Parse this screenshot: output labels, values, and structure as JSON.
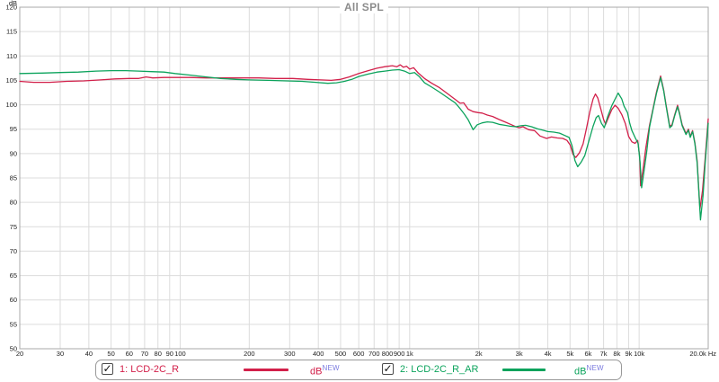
{
  "title": "All SPL",
  "legend": {
    "badge_color": "#7b7bdf",
    "items": [
      {
        "checked": true,
        "check_glyph": "✓",
        "label": "1: LCD-2C_R",
        "unit": "dB",
        "badge": "NEW",
        "color": "#d2204a"
      },
      {
        "checked": true,
        "check_glyph": "✓",
        "label": "2: LCD-2C_R_AR",
        "unit": "dB",
        "badge": "NEW",
        "color": "#0ca35c"
      }
    ]
  },
  "colors": {
    "grid": "#dcdcdc",
    "border": "#a8a8a8",
    "title": "#8c8c8c",
    "tick_text": "#222222",
    "plot_bg": "#ffffff"
  },
  "chart_data": {
    "type": "line",
    "title": "All SPL",
    "xlabel": "Hz",
    "ylabel": "dB",
    "xscale": "log",
    "xlim": [
      20,
      20000
    ],
    "ylim": [
      50,
      120
    ],
    "grid": true,
    "legend_position": "bottom",
    "y_ticks": [
      120,
      115,
      110,
      105,
      100,
      95,
      90,
      85,
      80,
      75,
      70,
      65,
      60,
      55,
      50
    ],
    "x_ticks": [
      {
        "f": 20,
        "label": "20"
      },
      {
        "f": 30,
        "label": "30"
      },
      {
        "f": 40,
        "label": "40"
      },
      {
        "f": 50,
        "label": "50"
      },
      {
        "f": 60,
        "label": "60"
      },
      {
        "f": 70,
        "label": "70"
      },
      {
        "f": 80,
        "label": "80"
      },
      {
        "f": 90,
        "label": "90"
      },
      {
        "f": 100,
        "label": "100"
      },
      {
        "f": 200,
        "label": "200"
      },
      {
        "f": 300,
        "label": "300"
      },
      {
        "f": 400,
        "label": "400"
      },
      {
        "f": 500,
        "label": "500"
      },
      {
        "f": 600,
        "label": "600"
      },
      {
        "f": 700,
        "label": "700"
      },
      {
        "f": 800,
        "label": "800"
      },
      {
        "f": 900,
        "label": "900"
      },
      {
        "f": 1000,
        "label": "1k"
      },
      {
        "f": 2000,
        "label": "2k"
      },
      {
        "f": 3000,
        "label": "3k"
      },
      {
        "f": 4000,
        "label": "4k"
      },
      {
        "f": 5000,
        "label": "5k"
      },
      {
        "f": 6000,
        "label": "6k"
      },
      {
        "f": 7000,
        "label": "7k"
      },
      {
        "f": 8000,
        "label": "8k"
      },
      {
        "f": 9000,
        "label": "9k"
      },
      {
        "f": 10000,
        "label": "10k"
      },
      {
        "f": 20000,
        "label": "20.0k Hz"
      }
    ],
    "series": [
      {
        "name": "1: LCD-2C_R",
        "color": "#d2204a",
        "unit": "dB",
        "points": [
          [
            20,
            104.8
          ],
          [
            23,
            104.6
          ],
          [
            27,
            104.6
          ],
          [
            32,
            104.8
          ],
          [
            38,
            104.9
          ],
          [
            45,
            105.1
          ],
          [
            52,
            105.3
          ],
          [
            60,
            105.4
          ],
          [
            66,
            105.4
          ],
          [
            71,
            105.7
          ],
          [
            76,
            105.5
          ],
          [
            85,
            105.6
          ],
          [
            95,
            105.6
          ],
          [
            110,
            105.6
          ],
          [
            130,
            105.5
          ],
          [
            155,
            105.5
          ],
          [
            185,
            105.5
          ],
          [
            220,
            105.5
          ],
          [
            260,
            105.4
          ],
          [
            310,
            105.4
          ],
          [
            360,
            105.2
          ],
          [
            410,
            105.1
          ],
          [
            455,
            105.0
          ],
          [
            500,
            105.2
          ],
          [
            545,
            105.7
          ],
          [
            600,
            106.4
          ],
          [
            660,
            107.0
          ],
          [
            720,
            107.5
          ],
          [
            780,
            107.8
          ],
          [
            840,
            108.0
          ],
          [
            880,
            107.8
          ],
          [
            910,
            108.2
          ],
          [
            940,
            107.7
          ],
          [
            970,
            107.9
          ],
          [
            1000,
            107.3
          ],
          [
            1040,
            107.6
          ],
          [
            1090,
            106.5
          ],
          [
            1160,
            105.4
          ],
          [
            1250,
            104.4
          ],
          [
            1350,
            103.5
          ],
          [
            1470,
            102.2
          ],
          [
            1580,
            101.1
          ],
          [
            1660,
            100.3
          ],
          [
            1720,
            100.4
          ],
          [
            1800,
            99.1
          ],
          [
            1890,
            98.6
          ],
          [
            1990,
            98.4
          ],
          [
            2070,
            98.3
          ],
          [
            2180,
            97.9
          ],
          [
            2300,
            97.6
          ],
          [
            2450,
            97.0
          ],
          [
            2600,
            96.5
          ],
          [
            2750,
            96.0
          ],
          [
            2900,
            95.5
          ],
          [
            3000,
            95.3
          ],
          [
            3120,
            95.5
          ],
          [
            3300,
            94.9
          ],
          [
            3500,
            94.7
          ],
          [
            3700,
            93.6
          ],
          [
            3950,
            93.1
          ],
          [
            4150,
            93.4
          ],
          [
            4400,
            93.2
          ],
          [
            4650,
            93.1
          ],
          [
            4850,
            92.7
          ],
          [
            5000,
            91.8
          ],
          [
            5150,
            89.8
          ],
          [
            5300,
            89.2
          ],
          [
            5500,
            90.2
          ],
          [
            5700,
            92.0
          ],
          [
            5900,
            95.2
          ],
          [
            6100,
            98.6
          ],
          [
            6300,
            101.2
          ],
          [
            6450,
            102.2
          ],
          [
            6600,
            101.4
          ],
          [
            6800,
            99.2
          ],
          [
            7000,
            97.0
          ],
          [
            7150,
            96.0
          ],
          [
            7350,
            97.4
          ],
          [
            7600,
            99.0
          ],
          [
            7850,
            99.9
          ],
          [
            8100,
            99.3
          ],
          [
            8400,
            98.0
          ],
          [
            8700,
            96.2
          ],
          [
            9000,
            93.5
          ],
          [
            9300,
            92.4
          ],
          [
            9600,
            92.1
          ],
          [
            9850,
            92.7
          ],
          [
            10050,
            89.5
          ],
          [
            10150,
            83.4
          ],
          [
            10400,
            86.8
          ],
          [
            10700,
            91.2
          ],
          [
            11100,
            95.8
          ],
          [
            11500,
            99.2
          ],
          [
            11900,
            102.6
          ],
          [
            12400,
            105.9
          ],
          [
            12800,
            103.0
          ],
          [
            13100,
            100.0
          ],
          [
            13600,
            95.6
          ],
          [
            13900,
            95.9
          ],
          [
            14300,
            98.0
          ],
          [
            14700,
            99.9
          ],
          [
            15000,
            98.3
          ],
          [
            15400,
            95.9
          ],
          [
            16000,
            94.1
          ],
          [
            16400,
            95.0
          ],
          [
            16700,
            93.5
          ],
          [
            17100,
            94.7
          ],
          [
            17500,
            92.2
          ],
          [
            17900,
            88.5
          ],
          [
            18400,
            78.6
          ],
          [
            18900,
            82.5
          ],
          [
            19400,
            89.0
          ],
          [
            20000,
            97.1
          ]
        ]
      },
      {
        "name": "2: LCD-2C_R_AR",
        "color": "#0ca35c",
        "unit": "dB",
        "points": [
          [
            20,
            106.4
          ],
          [
            25,
            106.5
          ],
          [
            30,
            106.6
          ],
          [
            36,
            106.7
          ],
          [
            43,
            106.9
          ],
          [
            50,
            107.0
          ],
          [
            58,
            107.0
          ],
          [
            66,
            106.9
          ],
          [
            75,
            106.8
          ],
          [
            85,
            106.7
          ],
          [
            95,
            106.4
          ],
          [
            110,
            106.1
          ],
          [
            130,
            105.7
          ],
          [
            150,
            105.4
          ],
          [
            175,
            105.2
          ],
          [
            200,
            105.1
          ],
          [
            240,
            105.0
          ],
          [
            290,
            104.9
          ],
          [
            340,
            104.8
          ],
          [
            390,
            104.6
          ],
          [
            440,
            104.4
          ],
          [
            480,
            104.5
          ],
          [
            520,
            104.8
          ],
          [
            560,
            105.2
          ],
          [
            600,
            105.8
          ],
          [
            660,
            106.3
          ],
          [
            720,
            106.7
          ],
          [
            780,
            106.9
          ],
          [
            840,
            107.1
          ],
          [
            900,
            107.2
          ],
          [
            950,
            106.9
          ],
          [
            1000,
            106.4
          ],
          [
            1050,
            106.6
          ],
          [
            1100,
            105.8
          ],
          [
            1160,
            104.5
          ],
          [
            1250,
            103.6
          ],
          [
            1350,
            102.6
          ],
          [
            1470,
            101.4
          ],
          [
            1580,
            100.4
          ],
          [
            1660,
            99.2
          ],
          [
            1730,
            98.1
          ],
          [
            1800,
            96.9
          ],
          [
            1890,
            94.9
          ],
          [
            1970,
            95.9
          ],
          [
            2070,
            96.3
          ],
          [
            2180,
            96.5
          ],
          [
            2300,
            96.4
          ],
          [
            2450,
            96.0
          ],
          [
            2600,
            95.8
          ],
          [
            2750,
            95.6
          ],
          [
            2900,
            95.5
          ],
          [
            3050,
            95.7
          ],
          [
            3200,
            95.8
          ],
          [
            3400,
            95.5
          ],
          [
            3600,
            95.1
          ],
          [
            3800,
            94.8
          ],
          [
            4000,
            94.5
          ],
          [
            4250,
            94.4
          ],
          [
            4500,
            94.2
          ],
          [
            4750,
            93.7
          ],
          [
            4950,
            93.3
          ],
          [
            5100,
            91.6
          ],
          [
            5250,
            88.6
          ],
          [
            5400,
            87.3
          ],
          [
            5600,
            88.3
          ],
          [
            5800,
            89.6
          ],
          [
            6050,
            92.7
          ],
          [
            6300,
            95.6
          ],
          [
            6500,
            97.4
          ],
          [
            6650,
            97.8
          ],
          [
            6850,
            96.2
          ],
          [
            7050,
            95.3
          ],
          [
            7300,
            97.6
          ],
          [
            7600,
            99.8
          ],
          [
            7900,
            101.4
          ],
          [
            8100,
            102.4
          ],
          [
            8400,
            101.2
          ],
          [
            8600,
            99.7
          ],
          [
            8900,
            98.4
          ],
          [
            9100,
            96.2
          ],
          [
            9300,
            94.7
          ],
          [
            9600,
            93.3
          ],
          [
            9900,
            92.1
          ],
          [
            10100,
            88.2
          ],
          [
            10250,
            83.0
          ],
          [
            10500,
            86.3
          ],
          [
            10800,
            90.6
          ],
          [
            11100,
            95.4
          ],
          [
            11500,
            99.0
          ],
          [
            11900,
            102.3
          ],
          [
            12400,
            105.6
          ],
          [
            12800,
            102.8
          ],
          [
            13100,
            99.8
          ],
          [
            13600,
            95.3
          ],
          [
            13900,
            95.7
          ],
          [
            14300,
            97.8
          ],
          [
            14700,
            99.6
          ],
          [
            15000,
            98.1
          ],
          [
            15400,
            95.7
          ],
          [
            16000,
            93.9
          ],
          [
            16400,
            94.8
          ],
          [
            16700,
            93.3
          ],
          [
            17100,
            94.5
          ],
          [
            17500,
            92.0
          ],
          [
            17900,
            88.0
          ],
          [
            18500,
            76.4
          ],
          [
            19000,
            81.5
          ],
          [
            19400,
            88.0
          ],
          [
            20000,
            96.2
          ]
        ]
      }
    ]
  }
}
